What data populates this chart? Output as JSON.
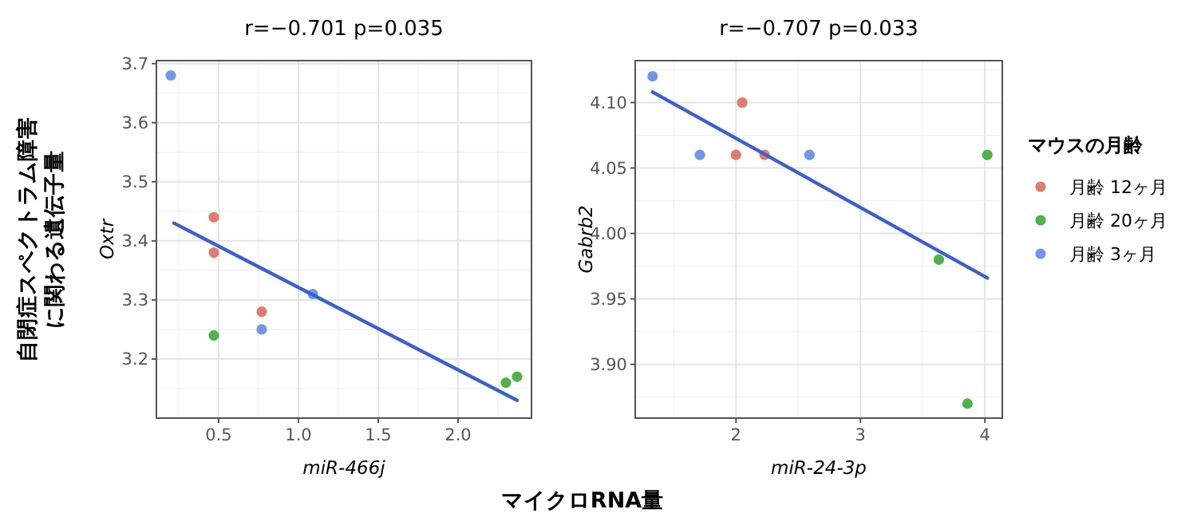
{
  "chart_data": [
    {
      "type": "scatter",
      "title": "r=−0.701    p=0.035",
      "xlabel": "miR-466j",
      "ylabel": "Oxtr",
      "annotations": [
        "自閉症スペクトラム障害に関わる遺伝子量",
        "マイクロRNA量"
      ],
      "xlim": [
        0.11,
        2.46
      ],
      "ylim": [
        3.1,
        3.705
      ],
      "xticks": [
        {
          "value": 0.5,
          "label": "0.5"
        },
        {
          "value": 1,
          "label": "1.0"
        },
        {
          "value": 1.5,
          "label": "1.5"
        },
        {
          "value": 2,
          "label": "2.0"
        }
      ],
      "yticks": [
        {
          "value": 3.2,
          "label": "3.2"
        },
        {
          "value": 3.3,
          "label": "3.3"
        },
        {
          "value": 3.4,
          "label": "3.4"
        },
        {
          "value": 3.5,
          "label": "3.5"
        },
        {
          "value": 3.6,
          "label": "3.6"
        },
        {
          "value": 3.7,
          "label": "3.7"
        }
      ],
      "grid": true,
      "legend": false,
      "marker": "circle",
      "series": [
        {
          "color": "#e07b6e",
          "x": [
            0.47,
            0.47,
            0.77
          ],
          "values": [
            3.44,
            3.38,
            3.28
          ]
        },
        {
          "color": "#4fb34a",
          "x": [
            0.47,
            2.3,
            2.37
          ],
          "values": [
            3.24,
            3.16,
            3.17
          ]
        },
        {
          "color": "#6f98e8",
          "x": [
            0.2,
            0.77,
            1.09
          ],
          "values": [
            3.68,
            3.25,
            3.31
          ]
        },
        {
          "type": "line",
          "marker": "none",
          "color": "#3c5fd0",
          "x": [
            0.22,
            2.37
          ],
          "values": [
            3.43,
            3.13
          ]
        }
      ]
    },
    {
      "type": "scatter",
      "title": "r=−0.707    p=0.033",
      "xlabel": "miR-24-3p",
      "ylabel": "Gabrb2",
      "legend_title": "マウスの月齢",
      "xlim": [
        1.19,
        4.14
      ],
      "ylim": [
        3.859,
        4.132
      ],
      "xticks": [
        2,
        3,
        4
      ],
      "yticks": [
        {
          "value": 3.9,
          "label": "3.90"
        },
        {
          "value": 3.95,
          "label": "3.95"
        },
        {
          "value": 4,
          "label": "4.00"
        },
        {
          "value": 4.05,
          "label": "4.05"
        },
        {
          "value": 4.1,
          "label": "4.10"
        }
      ],
      "grid": true,
      "legend": "right",
      "marker": "circle",
      "series": [
        {
          "name": "月齢 12ヶ月",
          "color": "#e07b6e",
          "x": [
            2.0,
            2.05,
            2.23
          ],
          "values": [
            4.06,
            4.1,
            4.06
          ]
        },
        {
          "name": "月齢 20ヶ月",
          "color": "#4fb34a",
          "x": [
            4.02,
            3.63,
            3.86
          ],
          "values": [
            4.06,
            3.98,
            3.87
          ]
        },
        {
          "name": "月齢 3ヶ月",
          "color": "#6f98e8",
          "x": [
            1.33,
            1.71,
            2.59
          ],
          "values": [
            4.12,
            4.06,
            4.06
          ]
        },
        {
          "type": "line",
          "marker": "none",
          "color": "#3c5fd0",
          "x": [
            1.33,
            4.02
          ],
          "values": [
            4.108,
            3.966
          ]
        }
      ]
    }
  ]
}
